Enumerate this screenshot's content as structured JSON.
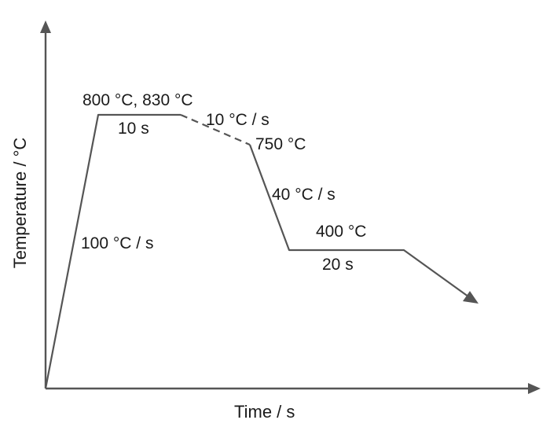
{
  "axes": {
    "x_label": "Time / s",
    "y_label": "Temperature / °C"
  },
  "annotations": {
    "peak_temps": "800 °C, 830 °C",
    "hold_peak": "10 s",
    "cool_rate_1": "10 °C / s",
    "temp_750": "750 °C",
    "cool_rate_2": "40 °C / s",
    "temp_400": "400 °C",
    "hold_400": "20 s",
    "heat_rate": "100 °C / s"
  },
  "colors": {
    "line": "#555555",
    "text": "#1a1a1a"
  }
}
